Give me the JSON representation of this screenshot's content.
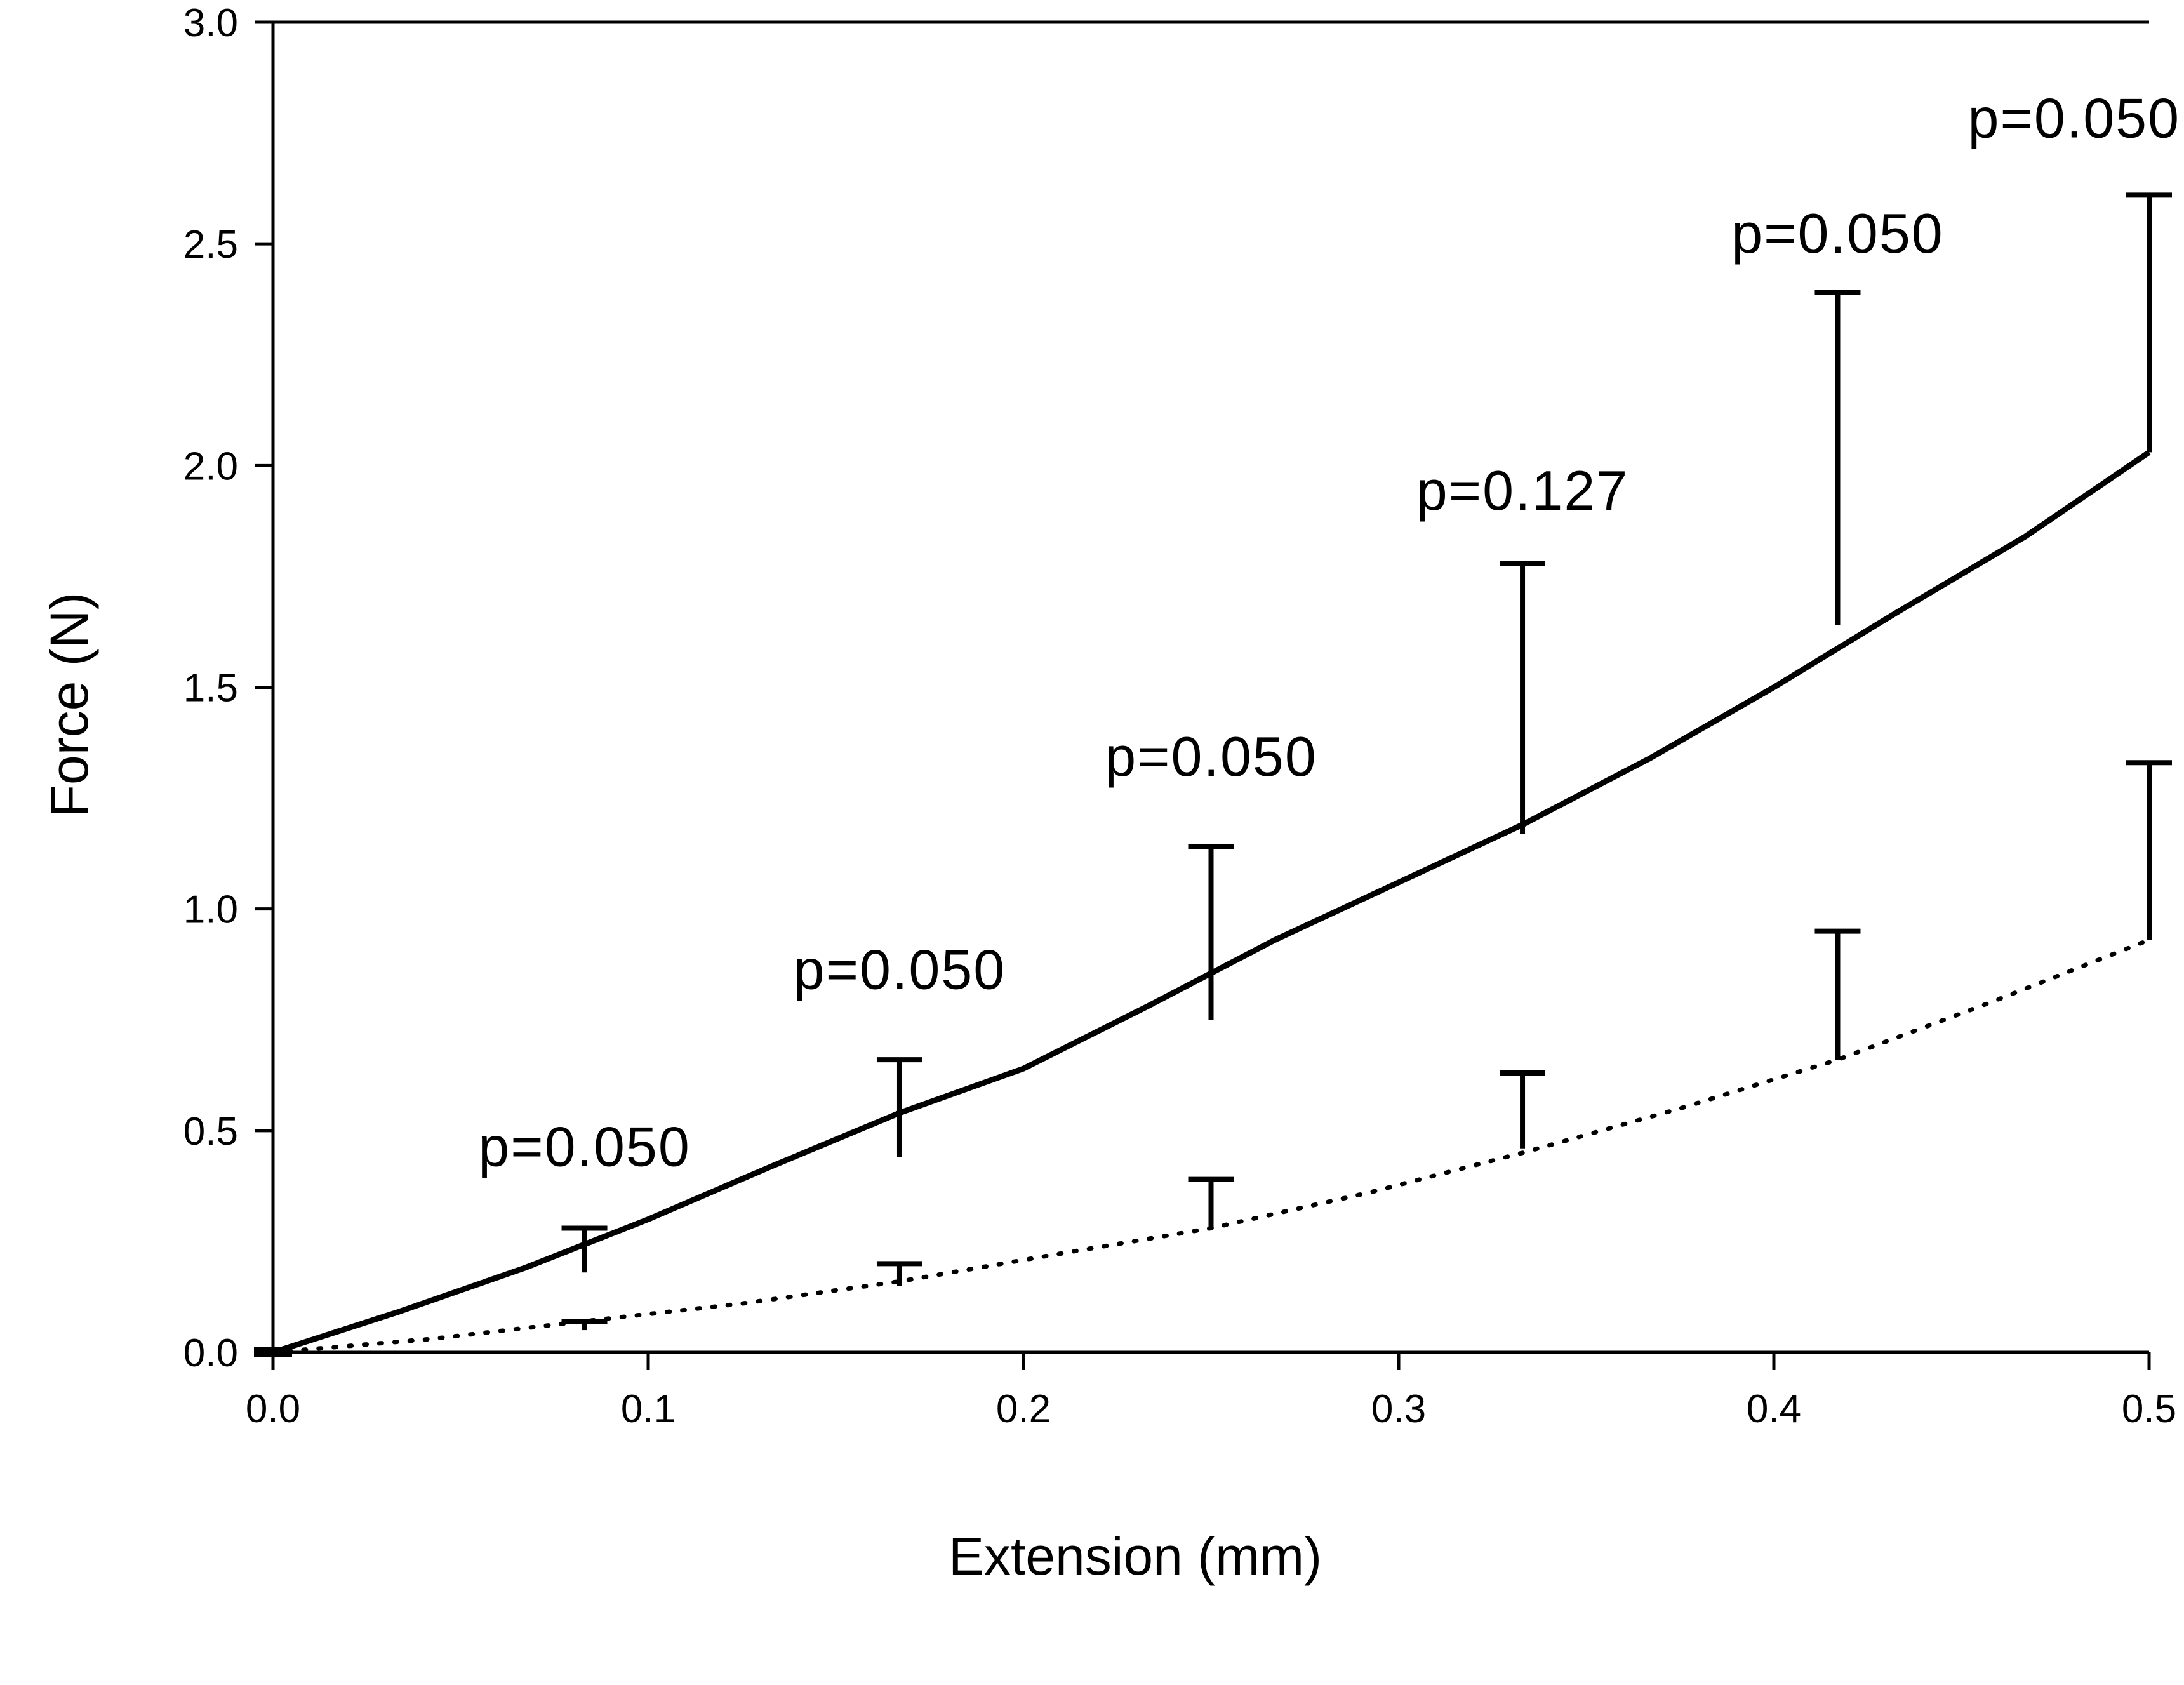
{
  "chart_data": {
    "type": "line",
    "title": "",
    "xlabel": "Extension (mm)",
    "ylabel": "Force (N)",
    "xlim": [
      0,
      0.5
    ],
    "ylim": [
      0,
      3.0
    ],
    "grid": false,
    "x_ticks": [
      {
        "value": 0.0,
        "label": "0.0"
      },
      {
        "value": 0.1,
        "label": "0.1"
      },
      {
        "value": 0.2,
        "label": "0.2"
      },
      {
        "value": 0.3,
        "label": "0.3"
      },
      {
        "value": 0.4,
        "label": "0.4"
      },
      {
        "value": 0.5,
        "label": "0.5"
      }
    ],
    "y_ticks": [
      {
        "value": 0.0,
        "label": "0.0"
      },
      {
        "value": 0.5,
        "label": "0.5"
      },
      {
        "value": 1.0,
        "label": "1.0"
      },
      {
        "value": 1.5,
        "label": "1.5"
      },
      {
        "value": 2.0,
        "label": "2.0"
      },
      {
        "value": 2.5,
        "label": "2.5"
      },
      {
        "value": 3.0,
        "label": "3.0"
      }
    ],
    "series": [
      {
        "style": "solid",
        "x": [
          0,
          0.033,
          0.067,
          0.1,
          0.133,
          0.167,
          0.2,
          0.233,
          0.267,
          0.3,
          0.333,
          0.367,
          0.4,
          0.433,
          0.467,
          0.5
        ],
        "y": [
          0.0,
          0.09,
          0.19,
          0.3,
          0.42,
          0.54,
          0.64,
          0.78,
          0.93,
          1.06,
          1.19,
          1.34,
          1.5,
          1.67,
          1.84,
          2.03
        ],
        "error_bars": {
          "x": [
            0.083,
            0.167,
            0.25,
            0.333,
            0.417,
            0.5
          ],
          "y": [
            0.18,
            0.44,
            0.75,
            1.17,
            1.64,
            2.03
          ],
          "upper": [
            0.28,
            0.66,
            1.14,
            1.78,
            2.39,
            2.61
          ]
        }
      },
      {
        "style": "dotted",
        "x": [
          0,
          0.042,
          0.083,
          0.125,
          0.167,
          0.208,
          0.25,
          0.292,
          0.333,
          0.375,
          0.417,
          0.458,
          0.5
        ],
        "y": [
          0.0,
          0.03,
          0.07,
          0.11,
          0.16,
          0.22,
          0.28,
          0.36,
          0.45,
          0.55,
          0.66,
          0.79,
          0.93
        ],
        "error_bars": {
          "x": [
            0.083,
            0.167,
            0.25,
            0.333,
            0.417,
            0.5
          ],
          "y": [
            0.05,
            0.15,
            0.28,
            0.46,
            0.66,
            0.93
          ],
          "upper": [
            0.07,
            0.2,
            0.39,
            0.63,
            0.95,
            1.33
          ]
        }
      }
    ],
    "annotations": [
      {
        "text": "p=0.050",
        "x": 0.083,
        "y": 0.42
      },
      {
        "text": "p=0.050",
        "x": 0.167,
        "y": 0.82
      },
      {
        "text": "p=0.050",
        "x": 0.25,
        "y": 1.3
      },
      {
        "text": "p=0.127",
        "x": 0.333,
        "y": 1.9
      },
      {
        "text": "p=0.050",
        "x": 0.417,
        "y": 2.48
      },
      {
        "text": "p=0.050",
        "x": 0.48,
        "y": 2.74
      }
    ]
  }
}
